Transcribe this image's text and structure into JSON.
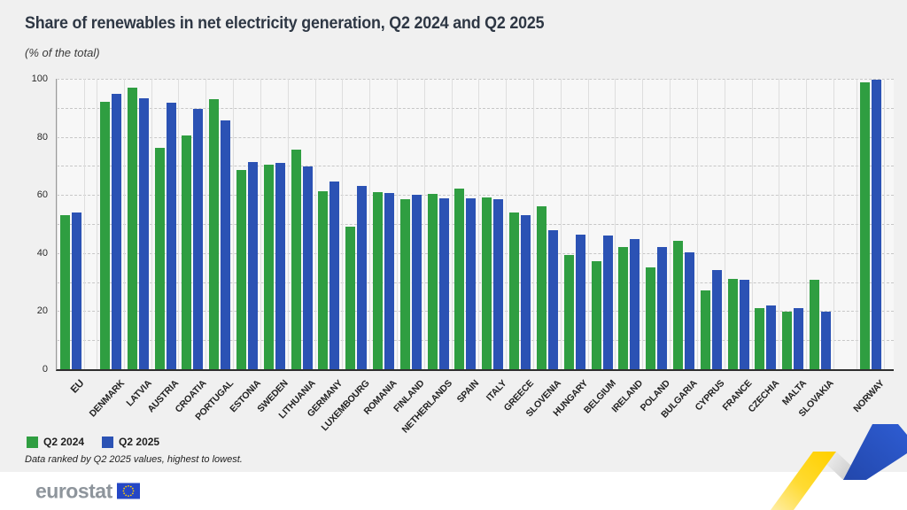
{
  "title": "Share of renewables in net electricity generation, Q2 2024 and Q2 2025",
  "subtitle": "(% of the total)",
  "footnote": "Data ranked by Q2 2025 values, highest to lowest.",
  "footer": {
    "logo_text": "eurostat"
  },
  "colors": {
    "q2_2024_green": "#2f9e41",
    "q2_2025_blue": "#2b52b4",
    "canvas_bg": "#f0f0f0",
    "plot_bg": "#f7f7f7",
    "footer_bg": "#ffffff",
    "title_text": "#2e3744",
    "gridline": "#c7c7c7",
    "ribbon_yellow": "#ffd000",
    "ribbon_blue": "#2b53c4",
    "logo_gray": "#8e959c",
    "eu_flag_blue": "#2547c6",
    "eu_flag_stars": "#ffcc00"
  },
  "chart_data": {
    "type": "bar",
    "title": "Share of renewables in net electricity generation, Q2 2024 and Q2 2025",
    "subtitle": "(% of the total)",
    "xlabel": "",
    "ylabel": "% of the total",
    "ylim": [
      0,
      100
    ],
    "yticks": [
      0,
      20,
      40,
      60,
      80,
      100
    ],
    "grid": "dashed horizontal lines every 10, light vertical separators per category",
    "legend_position": "bottom-left",
    "note": "Data ranked by Q2 2025 values, highest to lowest.",
    "group_gaps_after": [
      "EU",
      "SLOVAKIA"
    ],
    "categories": [
      "EU",
      "DENMARK",
      "LATVIA",
      "AUSTRIA",
      "CROATIA",
      "PORTUGAL",
      "ESTONIA",
      "SWEDEN",
      "LITHUANIA",
      "GERMANY",
      "LUXEMBOURG",
      "ROMANIA",
      "FINLAND",
      "NETHERLANDS",
      "SPAIN",
      "ITALY",
      "GREECE",
      "SLOVENIA",
      "HUNGARY",
      "BELGIUM",
      "IRELAND",
      "POLAND",
      "BULGARIA",
      "CYPRUS",
      "FRANCE",
      "CZECHIA",
      "MALTA",
      "SLOVAKIA",
      "NORWAY"
    ],
    "series": [
      {
        "name": "Q2 2024",
        "color": "#2f9e41",
        "values": [
          53.0,
          92.0,
          97.0,
          76.3,
          80.5,
          93.0,
          68.7,
          70.5,
          75.5,
          61.2,
          49.0,
          61.0,
          58.5,
          60.3,
          62.1,
          59.3,
          54.1,
          56.0,
          39.2,
          37.2,
          42.2,
          35.0,
          44.1,
          27.1,
          31.0,
          21.1,
          19.8,
          30.8,
          98.9
        ]
      },
      {
        "name": "Q2 2025",
        "color": "#2b52b4",
        "values": [
          54.1,
          94.7,
          93.4,
          91.8,
          89.5,
          85.6,
          71.5,
          71.0,
          69.8,
          64.5,
          63.1,
          60.8,
          60.2,
          59.0,
          58.8,
          58.5,
          53.0,
          48.0,
          46.4,
          46.2,
          44.7,
          42.0,
          40.2,
          34.2,
          30.7,
          22.0,
          21.2,
          19.8,
          99.7
        ]
      }
    ]
  }
}
